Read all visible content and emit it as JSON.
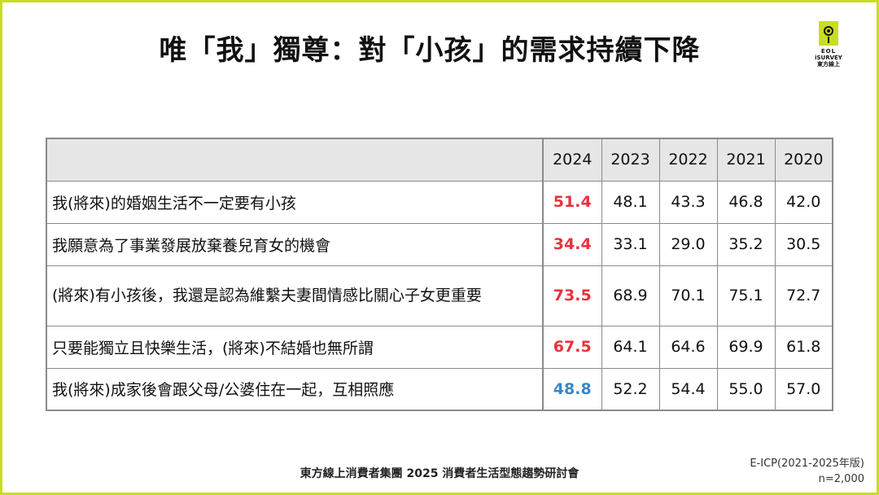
{
  "title": "唯「我」獨尊：對「小孩」的需求持續下降",
  "logo": {
    "line1": "EOL",
    "line2": "iSURVEY",
    "line3": "東方線上",
    "icon": "eye-icon"
  },
  "table": {
    "years": [
      "2024",
      "2023",
      "2022",
      "2021",
      "2020"
    ],
    "rows": [
      {
        "label": "我(將來)的婚姻生活不一定要有小孩",
        "values": [
          "51.4",
          "48.1",
          "43.3",
          "46.8",
          "42.0"
        ],
        "highlight": "up"
      },
      {
        "label": "我願意為了事業發展放棄養兒育女的機會",
        "values": [
          "34.4",
          "33.1",
          "29.0",
          "35.2",
          "30.5"
        ],
        "highlight": "up"
      },
      {
        "label": "(將來)有小孩後，我還是認為維繫夫妻間情感比關心子女更重要",
        "values": [
          "73.5",
          "68.9",
          "70.1",
          "75.1",
          "72.7"
        ],
        "highlight": "up"
      },
      {
        "label": "只要能獨立且快樂生活，(將來)不結婚也無所謂",
        "values": [
          "67.5",
          "64.1",
          "64.6",
          "69.9",
          "61.8"
        ],
        "highlight": "up"
      },
      {
        "label": "我(將來)成家後會跟父母/公婆住在一起，互相照應",
        "values": [
          "48.8",
          "52.2",
          "54.4",
          "55.0",
          "57.0"
        ],
        "highlight": "down"
      }
    ],
    "colors": {
      "up": "#e8323c",
      "down": "#3a86c8"
    }
  },
  "footer": "東方線上消費者集團 2025 消費者生活型態趨勢研討會",
  "source": {
    "line1": "E-ICP(2021-2025年版)",
    "line2": "n=2,000"
  },
  "frame_color": "#c8de1e"
}
